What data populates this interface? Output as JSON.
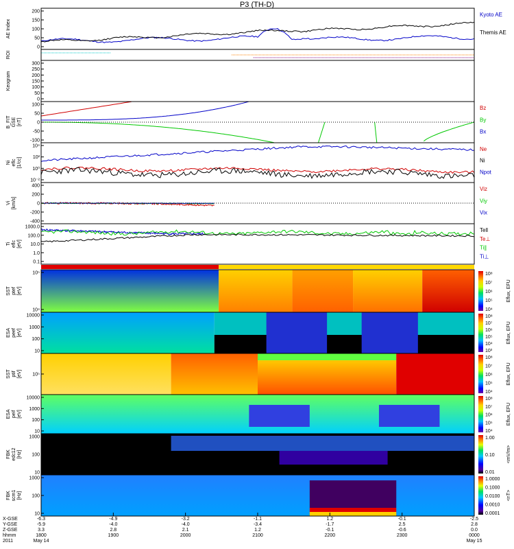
{
  "title": "P3 (TH-D)",
  "chart_data": {
    "type": "multi-panel",
    "title": "P3 (TH-D)",
    "panels": [
      {
        "id": "ae",
        "type": "line",
        "ylabel": [
          "AE Index"
        ],
        "yticks": [
          "200",
          "150",
          "100",
          "50",
          "0"
        ],
        "ylim": [
          0,
          200
        ],
        "series": [
          {
            "name": "Kyoto AE",
            "color": "#0000c8"
          },
          {
            "name": "Themis AE",
            "color": "#000000"
          }
        ]
      },
      {
        "id": "roi",
        "type": "line",
        "ylabel": [
          "ROI"
        ],
        "yticks": [],
        "series": []
      },
      {
        "id": "keogram",
        "type": "line",
        "ylabel": [
          "Keogram"
        ],
        "yticks": [
          "300",
          "250",
          "200",
          "150",
          "100",
          "50",
          "0"
        ],
        "ylim": [
          0,
          300
        ],
        "series": []
      },
      {
        "id": "bfit",
        "type": "line",
        "ylabel": [
          "B_FIT",
          "GSE",
          "[nT]"
        ],
        "yticks": [
          "100",
          "50",
          "0",
          "-50",
          "-100"
        ],
        "ylim": [
          -100,
          100
        ],
        "series": [
          {
            "name": "Bz",
            "color": "#d00000"
          },
          {
            "name": "By",
            "color": "#00c800"
          },
          {
            "name": "Bx",
            "color": "#0000c8"
          }
        ]
      },
      {
        "id": "density",
        "type": "line",
        "ylabel": [
          "Ni",
          "eflc",
          "[1/cc]"
        ],
        "yticks": [
          "10⁴",
          "10²",
          "10⁰",
          "10⁻²"
        ],
        "yscale": "log",
        "series": [
          {
            "name": "Ne",
            "color": "#d00000"
          },
          {
            "name": "Ni",
            "color": "#000000"
          },
          {
            "name": "Npot",
            "color": "#0000c8"
          }
        ]
      },
      {
        "id": "velocity",
        "type": "line",
        "ylabel": [
          "Vi",
          "[km/s]"
        ],
        "yticks": [
          "400",
          "200",
          "0",
          "-200",
          "-400"
        ],
        "ylim": [
          -400,
          400
        ],
        "series": [
          {
            "name": "Viz",
            "color": "#d00000"
          },
          {
            "name": "Viy",
            "color": "#00c800"
          },
          {
            "name": "Vix",
            "color": "#0000c8"
          }
        ]
      },
      {
        "id": "temperature",
        "type": "line",
        "ylabel": [
          "Ti",
          "eflc",
          "[eV]"
        ],
        "yticks": [
          "1000.0",
          "100.0",
          "10.0",
          "1.0",
          "0.1"
        ],
        "yscale": "log",
        "series": [
          {
            "name": "Tell",
            "color": "#000000"
          },
          {
            "name": "Te⊥",
            "color": "#d00000"
          },
          {
            "name": "Ti∥",
            "color": "#00c800"
          },
          {
            "name": "Ti⊥",
            "color": "#0000c8"
          }
        ]
      },
      {
        "id": "sst_e",
        "type": "heatmap",
        "ylabel": [
          "SST",
          "ptef",
          "[eV]"
        ],
        "yticks": [
          "10⁵",
          "10⁴"
        ],
        "zlabel": "Eflux, EFU",
        "zticks": [
          "10⁸",
          "10⁷",
          "10⁶",
          "10⁵",
          "10⁴"
        ]
      },
      {
        "id": "esa_e",
        "type": "heatmap",
        "ylabel": [
          "ESA",
          "peef",
          "[eV]"
        ],
        "yticks": [
          "10000",
          "1000",
          "100",
          "10"
        ],
        "zlabel": "Eflux, EFU",
        "zticks": [
          "10⁸",
          "10⁷",
          "10⁶",
          "10⁵",
          "10⁴",
          "10³"
        ]
      },
      {
        "id": "sst_i",
        "type": "heatmap",
        "ylabel": [
          "SST",
          "ptif",
          "[eV]"
        ],
        "yticks": [
          "10⁵"
        ],
        "zlabel": "Eflux, EFU",
        "zticks": [
          "10⁸",
          "10⁷",
          "10⁶",
          "10⁵",
          "10⁴"
        ]
      },
      {
        "id": "esa_i",
        "type": "heatmap",
        "ylabel": [
          "ESA",
          "peif",
          "[eV]"
        ],
        "yticks": [
          "10000",
          "1000",
          "100",
          "10"
        ],
        "zlabel": "Eflux, EFU",
        "zticks": [
          "10⁸",
          "10⁷",
          "10⁶",
          "10⁵",
          "10⁴"
        ]
      },
      {
        "id": "fbk_e",
        "type": "heatmap",
        "ylabel": [
          "FBK",
          "edc12",
          "[Hz]"
        ],
        "yticks": [
          "1000",
          "100",
          "10"
        ],
        "zlabel": "<mV/m>",
        "zticks": [
          "1.00",
          "0.10",
          "0.01"
        ]
      },
      {
        "id": "fbk_b",
        "type": "heatmap",
        "ylabel": [
          "FBK",
          "scm1",
          "[Hz]"
        ],
        "yticks": [
          "1000",
          "100",
          "10"
        ],
        "zlabel": "<nT>",
        "zticks": [
          "1.0000",
          "0.1000",
          "0.0100",
          "0.0010",
          "0.0001"
        ]
      }
    ],
    "time_axis": {
      "rows": [
        "X-GSE",
        "Y-GSE",
        "Z-GSE",
        "hhmm",
        "2011"
      ],
      "columns": [
        {
          "vals": [
            "-6.3",
            "-5.9",
            "3.3",
            "1800",
            "May 14"
          ]
        },
        {
          "vals": [
            "-4.9",
            "-4.0",
            "2.8",
            "1900",
            ""
          ]
        },
        {
          "vals": [
            "-3.2",
            "-4.0",
            "2.1",
            "2000",
            ""
          ]
        },
        {
          "vals": [
            "-1.1",
            "-3.4",
            "1.2",
            "2100",
            ""
          ]
        },
        {
          "vals": [
            "1.2",
            "-1.7",
            "-0.1",
            "2200",
            ""
          ]
        },
        {
          "vals": [
            "-0.1",
            "2.5",
            "-0.6",
            "2300",
            ""
          ]
        },
        {
          "vals": [
            "-2.5",
            "2.8",
            "0.0",
            "0000",
            "May 15"
          ]
        }
      ]
    }
  },
  "colors": {
    "blue": "#0000c8",
    "red": "#d00000",
    "green": "#00c800",
    "black": "#000000"
  }
}
